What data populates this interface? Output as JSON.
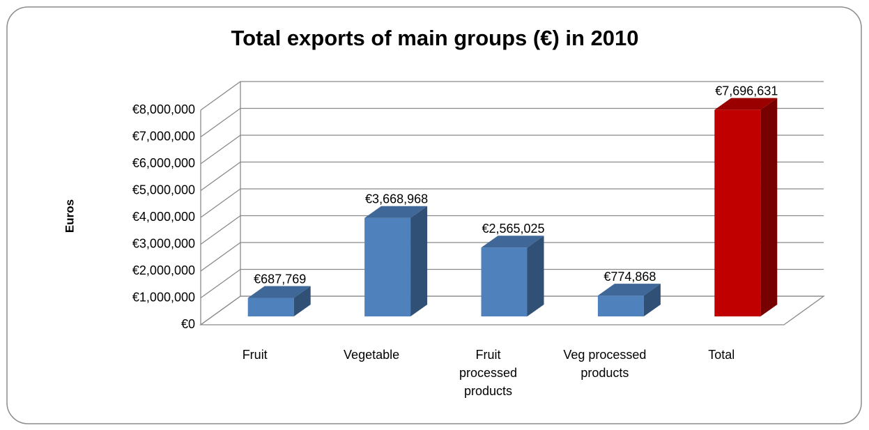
{
  "chart_data": {
    "type": "bar3d",
    "title": "Total exports of main groups (€) in 2010",
    "y_label": "Euros",
    "categories": [
      "Fruit",
      "Vegetable",
      "Fruit processed products",
      "Veg processed products",
      "Total"
    ],
    "values": [
      687769,
      3668968,
      2565025,
      774868,
      7696631
    ],
    "value_labels": [
      "€687,769",
      "€3,668,968",
      "€2,565,025",
      "€774,868",
      "€7,696,631"
    ],
    "colors": [
      "#4f81bd",
      "#4f81bd",
      "#4f81bd",
      "#4f81bd",
      "#c00000"
    ],
    "ylim": [
      0,
      8000000
    ],
    "yticks": [
      {
        "value": 0,
        "label": "€0"
      },
      {
        "value": 1000000,
        "label": "€1,000,000"
      },
      {
        "value": 2000000,
        "label": "€2,000,000"
      },
      {
        "value": 3000000,
        "label": "€3,000,000"
      },
      {
        "value": 4000000,
        "label": "€4,000,000"
      },
      {
        "value": 5000000,
        "label": "€5,000,000"
      },
      {
        "value": 6000000,
        "label": "€6,000,000"
      },
      {
        "value": 7000000,
        "label": "€7,000,000"
      },
      {
        "value": 8000000,
        "label": "€8,000,000"
      }
    ],
    "grid": true
  }
}
